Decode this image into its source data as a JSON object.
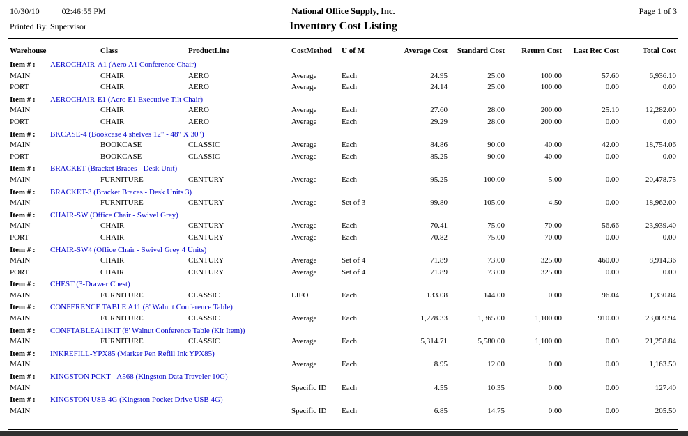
{
  "header": {
    "date": "10/30/10",
    "time": "02:46:55 PM",
    "printed_by": "Printed By: Supervisor",
    "company": "National Office Supply, Inc.",
    "report_title": "Inventory Cost Listing",
    "page_label": "Page 1 of 3"
  },
  "colors": {
    "item_link_blue": "#0000C8",
    "bottom_strip": "#303030"
  },
  "table": {
    "item_label": "Item # :",
    "columns": [
      "Warehouse",
      "Class",
      "ProductLine",
      "CostMethod",
      "U of M",
      "Average Cost",
      "Standard Cost",
      "Return Cost",
      "Last Rec Cost",
      "Total Cost"
    ],
    "items": [
      {
        "description": "AEROCHAIR-A1 (Aero A1 Conference Chair)",
        "rows": [
          {
            "warehouse": "MAIN",
            "class": "CHAIR",
            "product_line": "AERO",
            "cost_method": "Average",
            "uom": "Each",
            "average_cost": "24.95",
            "standard_cost": "25.00",
            "return_cost": "100.00",
            "last_rec_cost": "57.60",
            "total_cost": "6,936.10"
          },
          {
            "warehouse": "PORT",
            "class": "CHAIR",
            "product_line": "AERO",
            "cost_method": "Average",
            "uom": "Each",
            "average_cost": "24.14",
            "standard_cost": "25.00",
            "return_cost": "100.00",
            "last_rec_cost": "0.00",
            "total_cost": "0.00"
          }
        ]
      },
      {
        "description": "AEROCHAIR-E1 (Aero E1 Executive Tilt Chair)",
        "rows": [
          {
            "warehouse": "MAIN",
            "class": "CHAIR",
            "product_line": "AERO",
            "cost_method": "Average",
            "uom": "Each",
            "average_cost": "27.60",
            "standard_cost": "28.00",
            "return_cost": "200.00",
            "last_rec_cost": "25.10",
            "total_cost": "12,282.00"
          },
          {
            "warehouse": "PORT",
            "class": "CHAIR",
            "product_line": "AERO",
            "cost_method": "Average",
            "uom": "Each",
            "average_cost": "29.29",
            "standard_cost": "28.00",
            "return_cost": "200.00",
            "last_rec_cost": "0.00",
            "total_cost": "0.00"
          }
        ]
      },
      {
        "description": "BKCASE-4 (Bookcase 4 shelves 12\" - 48\" X 30\")",
        "rows": [
          {
            "warehouse": "MAIN",
            "class": "BOOKCASE",
            "product_line": "CLASSIC",
            "cost_method": "Average",
            "uom": "Each",
            "average_cost": "84.86",
            "standard_cost": "90.00",
            "return_cost": "40.00",
            "last_rec_cost": "42.00",
            "total_cost": "18,754.06"
          },
          {
            "warehouse": "PORT",
            "class": "BOOKCASE",
            "product_line": "CLASSIC",
            "cost_method": "Average",
            "uom": "Each",
            "average_cost": "85.25",
            "standard_cost": "90.00",
            "return_cost": "40.00",
            "last_rec_cost": "0.00",
            "total_cost": "0.00"
          }
        ]
      },
      {
        "description": "BRACKET (Bracket Braces - Desk Unit)",
        "rows": [
          {
            "warehouse": "MAIN",
            "class": "FURNITURE",
            "product_line": "CENTURY",
            "cost_method": "Average",
            "uom": "Each",
            "average_cost": "95.25",
            "standard_cost": "100.00",
            "return_cost": "5.00",
            "last_rec_cost": "0.00",
            "total_cost": "20,478.75"
          }
        ]
      },
      {
        "description": "BRACKET-3 (Bracket Braces - Desk Units 3)",
        "rows": [
          {
            "warehouse": "MAIN",
            "class": "FURNITURE",
            "product_line": "CENTURY",
            "cost_method": "Average",
            "uom": "Set of 3",
            "average_cost": "99.80",
            "standard_cost": "105.00",
            "return_cost": "4.50",
            "last_rec_cost": "0.00",
            "total_cost": "18,962.00"
          }
        ]
      },
      {
        "description": "CHAIR-SW (Office Chair - Swivel Grey)",
        "rows": [
          {
            "warehouse": "MAIN",
            "class": "CHAIR",
            "product_line": "CENTURY",
            "cost_method": "Average",
            "uom": "Each",
            "average_cost": "70.41",
            "standard_cost": "75.00",
            "return_cost": "70.00",
            "last_rec_cost": "56.66",
            "total_cost": "23,939.40"
          },
          {
            "warehouse": "PORT",
            "class": "CHAIR",
            "product_line": "CENTURY",
            "cost_method": "Average",
            "uom": "Each",
            "average_cost": "70.82",
            "standard_cost": "75.00",
            "return_cost": "70.00",
            "last_rec_cost": "0.00",
            "total_cost": "0.00"
          }
        ]
      },
      {
        "description": "CHAIR-SW4 (Office Chair - Swivel Grey 4 Units)",
        "rows": [
          {
            "warehouse": "MAIN",
            "class": "CHAIR",
            "product_line": "CENTURY",
            "cost_method": "Average",
            "uom": "Set of 4",
            "average_cost": "71.89",
            "standard_cost": "73.00",
            "return_cost": "325.00",
            "last_rec_cost": "460.00",
            "total_cost": "8,914.36"
          },
          {
            "warehouse": "PORT",
            "class": "CHAIR",
            "product_line": "CENTURY",
            "cost_method": "Average",
            "uom": "Set of 4",
            "average_cost": "71.89",
            "standard_cost": "73.00",
            "return_cost": "325.00",
            "last_rec_cost": "0.00",
            "total_cost": "0.00"
          }
        ]
      },
      {
        "description": "CHEST (3-Drawer Chest)",
        "rows": [
          {
            "warehouse": "MAIN",
            "class": "FURNITURE",
            "product_line": "CLASSIC",
            "cost_method": "LIFO",
            "uom": "Each",
            "average_cost": "133.08",
            "standard_cost": "144.00",
            "return_cost": "0.00",
            "last_rec_cost": "96.04",
            "total_cost": "1,330.84"
          }
        ]
      },
      {
        "description": "CONFERENCE TABLE A11 (8' Walnut Conference Table)",
        "rows": [
          {
            "warehouse": "MAIN",
            "class": "FURNITURE",
            "product_line": "CLASSIC",
            "cost_method": "Average",
            "uom": "Each",
            "average_cost": "1,278.33",
            "standard_cost": "1,365.00",
            "return_cost": "1,100.00",
            "last_rec_cost": "910.00",
            "total_cost": "23,009.94"
          }
        ]
      },
      {
        "description": "CONFTABLEA11KIT (8' Walnut Conference Table (Kit Item))",
        "rows": [
          {
            "warehouse": "MAIN",
            "class": "FURNITURE",
            "product_line": "CLASSIC",
            "cost_method": "Average",
            "uom": "Each",
            "average_cost": "5,314.71",
            "standard_cost": "5,580.00",
            "return_cost": "1,100.00",
            "last_rec_cost": "0.00",
            "total_cost": "21,258.84"
          }
        ]
      },
      {
        "description": "INKREFILL-YPX85 (Marker Pen Refill Ink YPX85)",
        "rows": [
          {
            "warehouse": "MAIN",
            "class": "",
            "product_line": "",
            "cost_method": "Average",
            "uom": "Each",
            "average_cost": "8.95",
            "standard_cost": "12.00",
            "return_cost": "0.00",
            "last_rec_cost": "0.00",
            "total_cost": "1,163.50"
          }
        ]
      },
      {
        "description": "KINGSTON PCKT - A568 (Kingston Data Traveler 10G)",
        "rows": [
          {
            "warehouse": "MAIN",
            "class": "",
            "product_line": "",
            "cost_method": "Specific ID",
            "uom": "Each",
            "average_cost": "4.55",
            "standard_cost": "10.35",
            "return_cost": "0.00",
            "last_rec_cost": "0.00",
            "total_cost": "127.40"
          }
        ]
      },
      {
        "description": "KINGSTON USB 4G (Kingston Pocket Drive USB 4G)",
        "rows": [
          {
            "warehouse": "MAIN",
            "class": "",
            "product_line": "",
            "cost_method": "Specific ID",
            "uom": "Each",
            "average_cost": "6.85",
            "standard_cost": "14.75",
            "return_cost": "0.00",
            "last_rec_cost": "0.00",
            "total_cost": "205.50"
          }
        ]
      }
    ]
  }
}
